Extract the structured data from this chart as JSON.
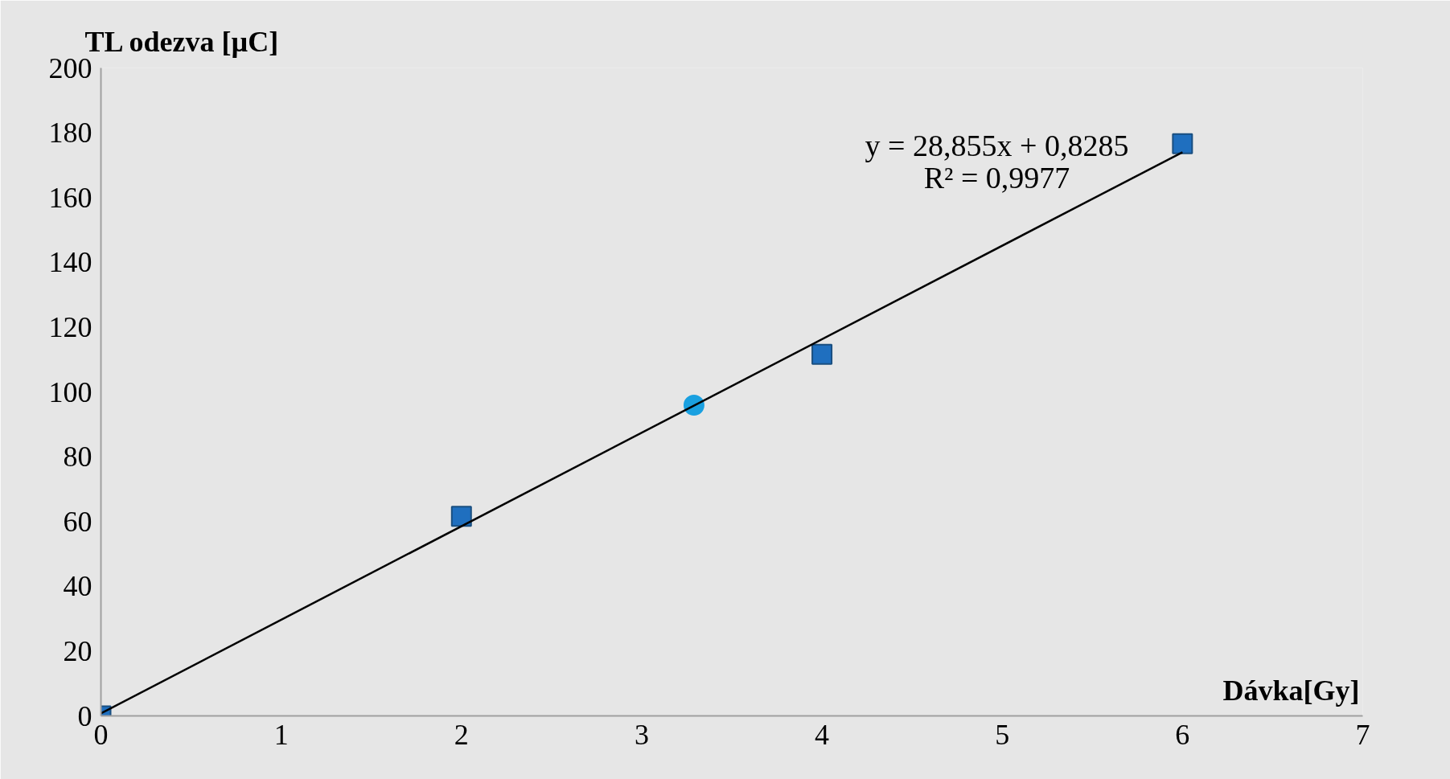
{
  "chart_data": {
    "type": "scatter",
    "xlabel": "Dávka[Gy]",
    "ylabel": "TL odezva [µC]",
    "xlim": [
      0,
      7
    ],
    "ylim": [
      0,
      200
    ],
    "xticks": [
      0,
      1,
      2,
      3,
      4,
      5,
      6,
      7
    ],
    "yticks": [
      0,
      20,
      40,
      60,
      80,
      100,
      120,
      140,
      160,
      180,
      200
    ],
    "series": [
      {
        "color": "#1f6fbf",
        "marker": "square",
        "x": [
          0,
          2,
          4,
          6
        ],
        "values": [
          0,
          61.6,
          111.6,
          176.6
        ]
      },
      {
        "color": "#1aa0e0",
        "marker": "circle",
        "x": [
          3.29
        ],
        "values": [
          95.9
        ]
      },
      {
        "type": "line",
        "color": "#000000",
        "marker": "none",
        "line_style": "solid",
        "x": [
          0,
          6
        ],
        "values": [
          0.8,
          174
        ]
      }
    ],
    "annotations": [
      "y = 28,855x + 0,8285",
      "R² = 0,9977"
    ]
  }
}
